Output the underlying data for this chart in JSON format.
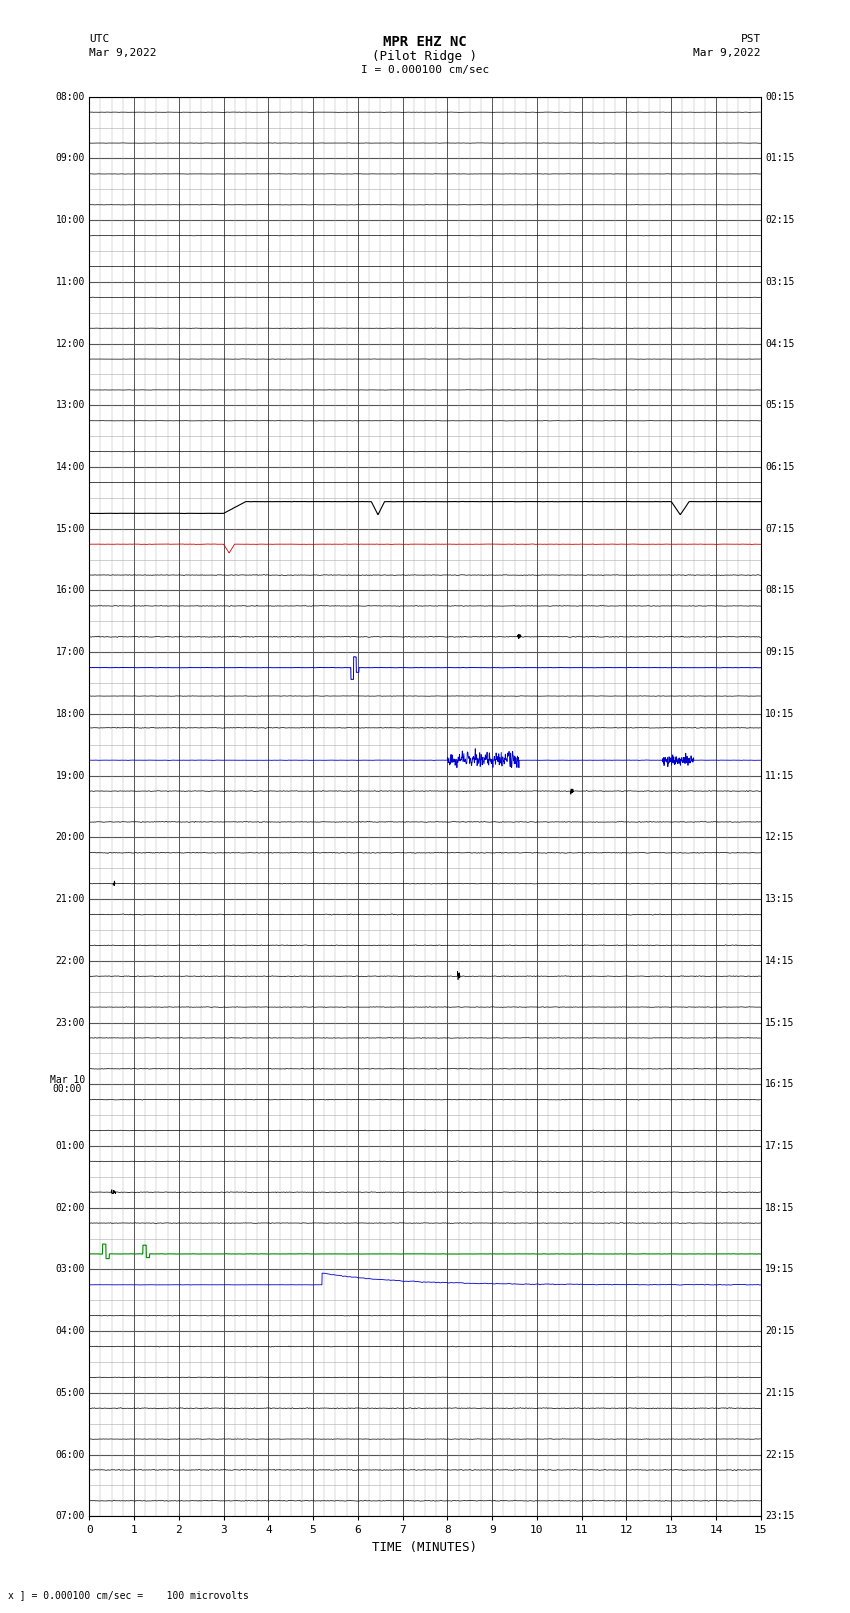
{
  "title_line1": "MPR EHZ NC",
  "title_line2": "(Pilot Ridge )",
  "scale_label": "I = 0.000100 cm/sec",
  "left_label_top": "UTC",
  "left_label_date": "Mar 9,2022",
  "right_label_top": "PST",
  "right_label_date": "Mar 9,2022",
  "bottom_label": "TIME (MINUTES)",
  "footer_text": "x ] = 0.000100 cm/sec =    100 microvolts",
  "num_rows": 46,
  "x_ticks": [
    0,
    1,
    2,
    3,
    4,
    5,
    6,
    7,
    8,
    9,
    10,
    11,
    12,
    13,
    14,
    15
  ],
  "x_lim": [
    0,
    15
  ],
  "bg_color": "#ffffff",
  "grid_color_major": "#555555",
  "grid_color_minor": "#aaaaaa",
  "trace_color_normal": "#000000",
  "trace_color_blue": "#0000cc",
  "trace_color_red": "#cc0000",
  "trace_color_green": "#008800",
  "fig_width": 8.5,
  "fig_height": 16.13,
  "dpi": 100
}
